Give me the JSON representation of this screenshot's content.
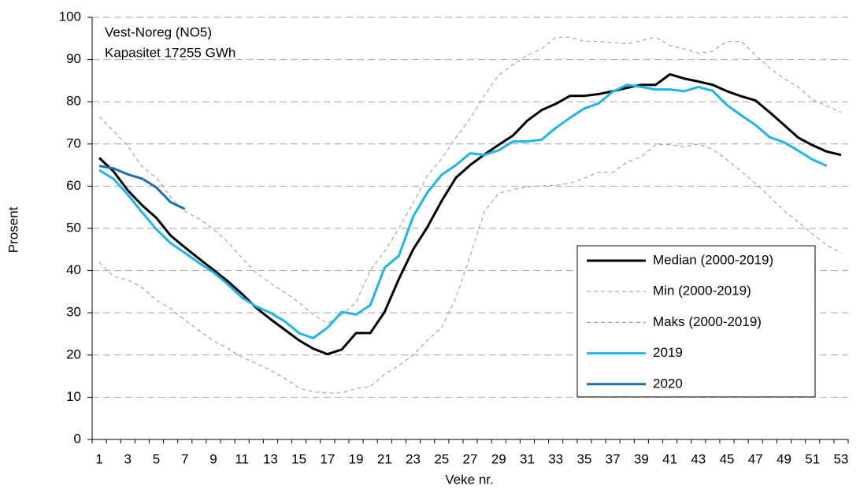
{
  "chart_data": {
    "type": "line",
    "annotations": [
      "Vest-Noreg  (NO5)",
      "Kapasitet 17255  GWh"
    ],
    "x_label": "Veke nr.",
    "y_label": "Prosent",
    "categories": [
      "1",
      null,
      "3",
      null,
      "5",
      null,
      "7",
      null,
      "9",
      null,
      "11",
      null,
      "13",
      null,
      "15",
      null,
      "17",
      null,
      "19",
      null,
      "21",
      null,
      "23",
      null,
      "25",
      null,
      "27",
      null,
      "29",
      null,
      "31",
      null,
      "33",
      null,
      "35",
      null,
      "37",
      null,
      "39",
      null,
      "41",
      null,
      "43",
      null,
      "45",
      null,
      "47",
      null,
      "49",
      null,
      "51",
      null,
      "53"
    ],
    "ylim": [
      0,
      100
    ],
    "yticks": [
      0,
      10,
      20,
      30,
      40,
      50,
      60,
      70,
      80,
      90,
      100
    ],
    "grid": true,
    "legend": "lower right",
    "series": [
      {
        "name": "Median (2000-2019)",
        "color": "#000000",
        "style": "solid",
        "values": [
          66.7,
          63.5,
          59,
          55.5,
          52.5,
          48.3,
          45.5,
          42.8,
          40.2,
          37.5,
          34.5,
          31.2,
          28.5,
          26,
          23.5,
          21.5,
          20.2,
          21.3,
          25.2,
          25.2,
          30.2,
          38,
          45,
          50.3,
          56.5,
          62,
          65,
          67.5,
          69.8,
          72,
          75.5,
          78,
          79.5,
          81.4,
          81.4,
          81.8,
          82.5,
          83.3,
          84,
          84,
          86.5,
          85.5,
          84.8,
          84,
          82.5,
          81.3,
          80.3,
          77.5,
          74.5,
          71.5,
          69.7,
          68.2,
          67.4
        ]
      },
      {
        "name": "Min (2000-2019)",
        "color": "#a6a6a6",
        "style": "dashed",
        "values": [
          42,
          38.6,
          37.8,
          36,
          33,
          31,
          28.3,
          25.8,
          23.4,
          21.6,
          19.5,
          18,
          16.4,
          14.5,
          12.2,
          11.3,
          11,
          11,
          12.1,
          12.5,
          15.5,
          17.5,
          20,
          23.5,
          26.5,
          33.5,
          43.5,
          54,
          58.3,
          59.2,
          59.8,
          60.1,
          60.2,
          60.7,
          61.9,
          63.3,
          63.3,
          65.7,
          67,
          69.8,
          69.9,
          69.3,
          70,
          68.7,
          66.3,
          63.5,
          60.6,
          57.5,
          54.2,
          51.5,
          48.7,
          46,
          44.2
        ]
      },
      {
        "name": "Maks (2000-2019)",
        "color": "#a6a6a6",
        "style": "dashed",
        "values": [
          76.5,
          73,
          69.5,
          64.6,
          62,
          57.5,
          54,
          52.3,
          49.8,
          46.8,
          43,
          39.5,
          37,
          34.8,
          32.5,
          29.5,
          27.5,
          29.5,
          32.5,
          40,
          44.5,
          50,
          56,
          62.5,
          66.5,
          71.5,
          76,
          81.5,
          86.3,
          88.8,
          91,
          92.5,
          95.3,
          95.3,
          94.3,
          94.3,
          94,
          93.7,
          94.5,
          95.3,
          93.3,
          92.5,
          91.5,
          92,
          94.3,
          94.3,
          91,
          88,
          85.5,
          83.5,
          80.5,
          79,
          77.5
        ]
      },
      {
        "name": "2019",
        "color": "#1fb4ea",
        "style": "solid",
        "values": [
          63.8,
          61.7,
          58,
          53.8,
          49.8,
          46.5,
          44.2,
          41.8,
          39.6,
          36.8,
          33.6,
          31.5,
          30,
          28,
          25.2,
          24,
          26.5,
          30.2,
          29.6,
          31.8,
          40.7,
          43.5,
          52.8,
          58.5,
          62.7,
          65,
          67.8,
          67.4,
          68.5,
          70.6,
          70.6,
          71,
          73.8,
          76.2,
          78.4,
          79.6,
          82.4,
          84,
          83.5,
          82.9,
          82.9,
          82.5,
          83.5,
          82.6,
          79.2,
          76.8,
          74.5,
          71.6,
          70.4,
          68.4,
          66.3,
          64.8,
          null
        ]
      },
      {
        "name": "2020",
        "color": "#1a6faf",
        "style": "solid",
        "values": [
          64.8,
          64.2,
          62.8,
          61.8,
          59.7,
          56.2,
          54.6,
          null,
          null,
          null,
          null,
          null,
          null,
          null,
          null,
          null,
          null,
          null,
          null,
          null,
          null,
          null,
          null,
          null,
          null,
          null,
          null,
          null,
          null,
          null,
          null,
          null,
          null,
          null,
          null,
          null,
          null,
          null,
          null,
          null,
          null,
          null,
          null,
          null,
          null,
          null,
          null,
          null,
          null,
          null,
          null,
          null,
          null
        ]
      }
    ]
  }
}
